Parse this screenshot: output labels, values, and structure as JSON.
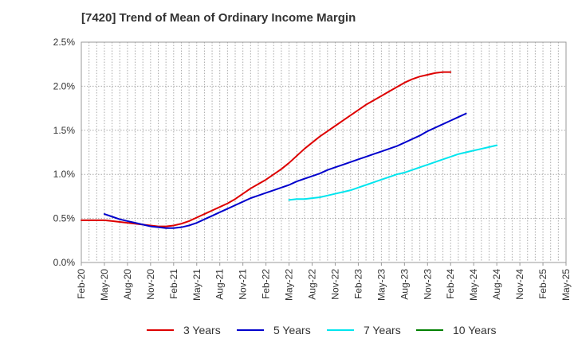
{
  "chart_data": {
    "type": "line",
    "title": "[7420]  Trend of Mean of Ordinary Income Margin",
    "xlabel": "",
    "ylabel": "",
    "x_tick_labels": [
      "Feb-20",
      "May-20",
      "Aug-20",
      "Nov-20",
      "Feb-21",
      "May-21",
      "Aug-21",
      "Nov-21",
      "Feb-22",
      "May-22",
      "Aug-22",
      "Nov-22",
      "Feb-23",
      "May-23",
      "Aug-23",
      "Nov-23",
      "Feb-24",
      "May-24",
      "Aug-24",
      "Nov-24",
      "Feb-25",
      "May-25"
    ],
    "y_tick_labels": [
      "0.0%",
      "0.5%",
      "1.0%",
      "1.5%",
      "2.0%",
      "2.5%"
    ],
    "ylim": [
      0,
      2.5
    ],
    "y_unit": "%",
    "grid": true,
    "legend_position": "bottom",
    "series": [
      {
        "name": "3 Years",
        "color": "#dd0000",
        "start": "Feb-20",
        "values": [
          0.48,
          0.48,
          0.48,
          0.48,
          0.47,
          0.46,
          0.45,
          0.44,
          0.43,
          0.42,
          0.41,
          0.41,
          0.42,
          0.44,
          0.47,
          0.51,
          0.55,
          0.59,
          0.63,
          0.67,
          0.72,
          0.78,
          0.84,
          0.89,
          0.94,
          1.0,
          1.06,
          1.13,
          1.21,
          1.29,
          1.36,
          1.43,
          1.49,
          1.55,
          1.61,
          1.67,
          1.73,
          1.79,
          1.84,
          1.89,
          1.94,
          1.99,
          2.04,
          2.08,
          2.11,
          2.13,
          2.15,
          2.16,
          2.16
        ]
      },
      {
        "name": "5 Years",
        "color": "#0000cc",
        "start": "May-20",
        "values": [
          0.55,
          0.52,
          0.49,
          0.47,
          0.45,
          0.43,
          0.41,
          0.4,
          0.39,
          0.39,
          0.4,
          0.42,
          0.45,
          0.49,
          0.53,
          0.57,
          0.61,
          0.65,
          0.69,
          0.73,
          0.76,
          0.79,
          0.82,
          0.85,
          0.88,
          0.92,
          0.95,
          0.98,
          1.01,
          1.05,
          1.08,
          1.11,
          1.14,
          1.17,
          1.2,
          1.23,
          1.26,
          1.29,
          1.32,
          1.36,
          1.4,
          1.44,
          1.49,
          1.53,
          1.57,
          1.61,
          1.65,
          1.69
        ]
      },
      {
        "name": "7 Years",
        "color": "#00e5ee",
        "start": "May-22",
        "values": [
          0.71,
          0.72,
          0.72,
          0.73,
          0.74,
          0.76,
          0.78,
          0.8,
          0.82,
          0.85,
          0.88,
          0.91,
          0.94,
          0.97,
          1.0,
          1.02,
          1.05,
          1.08,
          1.11,
          1.14,
          1.17,
          1.2,
          1.23,
          1.25,
          1.27,
          1.29,
          1.31,
          1.33
        ]
      },
      {
        "name": "10 Years",
        "color": "#008000",
        "start": "",
        "values": []
      }
    ]
  }
}
